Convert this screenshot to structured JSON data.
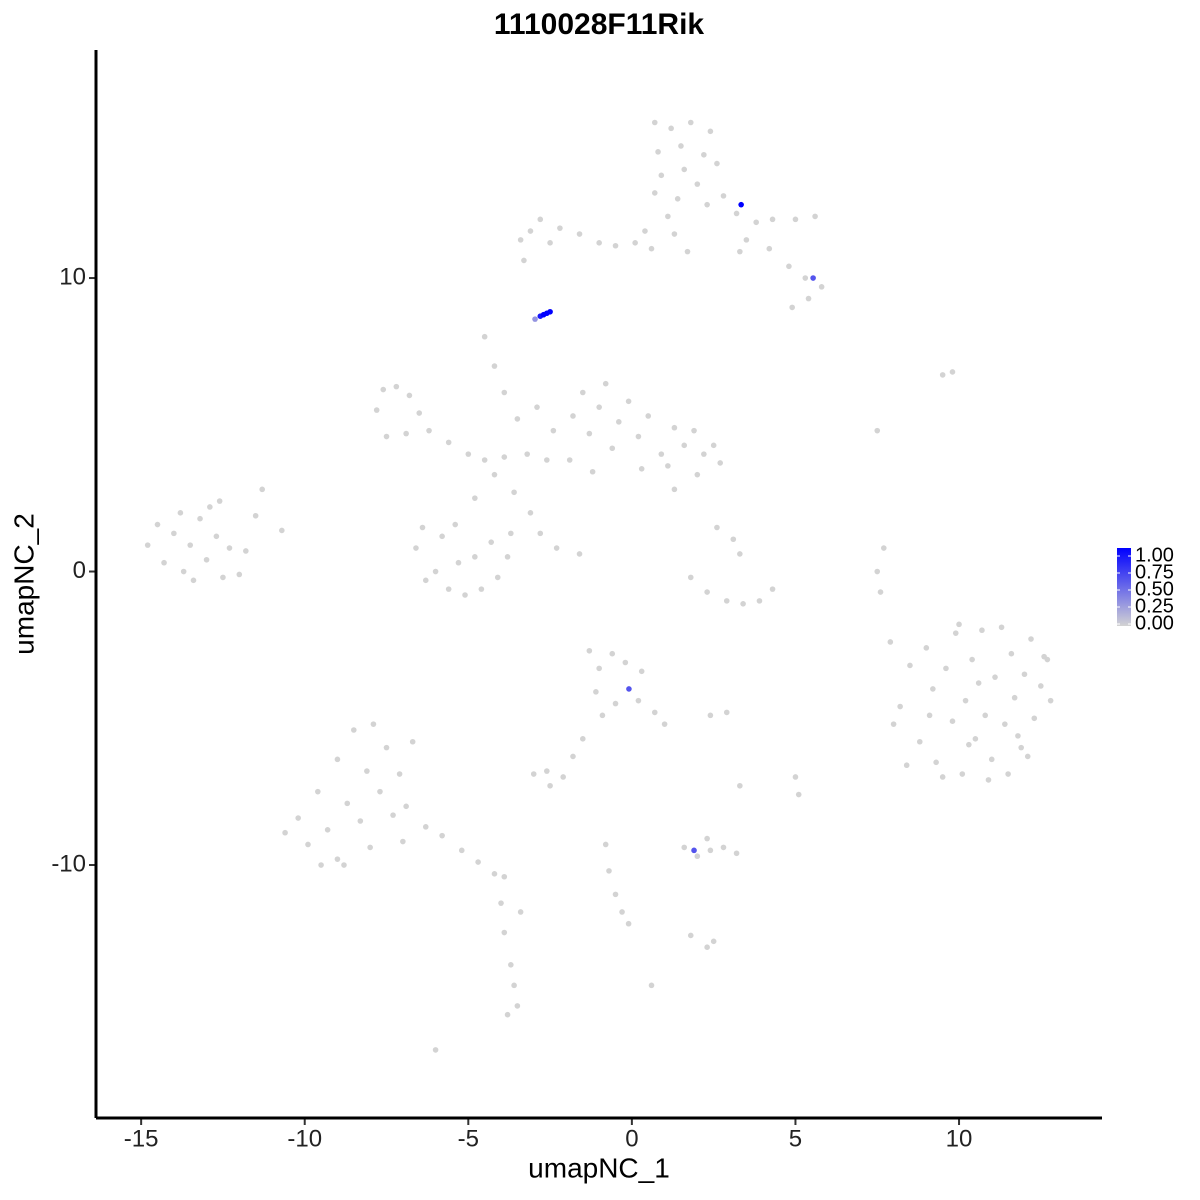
{
  "chart_data": {
    "type": "scatter",
    "title": "1110028F11Rik",
    "x_label": "umapNC_1",
    "y_label": "umapNC_2",
    "xlim": [
      -16.38,
      14.37
    ],
    "ylim": [
      -18.62,
      17.77
    ],
    "xticks": [
      -15,
      -10,
      -5,
      0,
      5,
      10
    ],
    "yticks": [
      -10,
      0,
      10
    ],
    "grid": false,
    "x": [
      8.2,
      8.5,
      8.8,
      9.0,
      9.2,
      9.3,
      9.6,
      9.8,
      9.9,
      10.1,
      10.2,
      10.4,
      10.5,
      10.7,
      10.8,
      11.0,
      11.1,
      11.3,
      11.4,
      11.6,
      11.7,
      11.9,
      12.0,
      12.2,
      12.3,
      12.5,
      12.6,
      12.8,
      9.5,
      10.9,
      8.4,
      11.5,
      12.1,
      10.0,
      8.0,
      12.7,
      9.1,
      10.6,
      11.8,
      10.3,
      0.7,
      1.2,
      1.8,
      2.4,
      0.8,
      1.5,
      2.2,
      2.6,
      0.9,
      1.6,
      2.0,
      0.7,
      1.4,
      2.3,
      1.1,
      2.8,
      3.2,
      3.8,
      4.3,
      5.0,
      5.6,
      3.5,
      4.2,
      4.8,
      5.3,
      5.8,
      5.4,
      4.9,
      3.3,
      0.4,
      0.1,
      -0.5,
      -1.0,
      -1.6,
      -2.2,
      -2.8,
      -3.1,
      -3.4,
      -2.5,
      -3.3,
      0.6,
      1.3,
      1.7,
      -14.8,
      -14.5,
      -14.3,
      -14.0,
      -13.8,
      -13.7,
      -13.5,
      -13.2,
      -13.0,
      -12.9,
      -12.7,
      -12.5,
      -12.3,
      -12.0,
      -11.8,
      -13.4,
      -12.6,
      -11.3,
      -10.7,
      -11.5,
      -1.8,
      -1.5,
      -1.3,
      -1.0,
      -0.8,
      -0.6,
      -0.4,
      -0.1,
      0.2,
      0.5,
      0.9,
      1.3,
      1.6,
      1.9,
      2.2,
      2.5,
      2.7,
      1.1,
      -1.9,
      -1.2,
      0.3,
      2.0,
      -7.8,
      -7.6,
      -7.2,
      -6.8,
      -6.5,
      -6.9,
      -7.5,
      -6.2,
      -5.6,
      -5.0,
      -4.5,
      -3.9,
      -3.2,
      -2.6,
      -4.2,
      -4.8,
      -5.4,
      -3.6,
      -3.1,
      -2.8,
      -2.3,
      -1.6,
      -4.5,
      -4.2,
      -3.9,
      -3.5,
      -2.9,
      -2.4,
      -6.6,
      -6.4,
      -6.0,
      -5.6,
      -5.1,
      -4.6,
      -4.1,
      -3.8,
      -3.7,
      -4.3,
      -5.3,
      -6.3,
      -5.8,
      -4.8,
      1.8,
      2.3,
      2.9,
      3.4,
      3.9,
      4.3,
      3.1,
      3.3,
      2.6,
      1.3,
      7.7,
      7.5,
      7.6,
      7.9,
      7.5,
      9.5,
      9.8,
      -1.3,
      -1.0,
      -0.6,
      -0.2,
      0.3,
      -1.1,
      -0.5,
      0.2,
      0.7,
      1.0,
      -0.9,
      -1.5,
      -1.8,
      2.4,
      2.9,
      -2.6,
      -2.1,
      -3.0,
      -2.5,
      5.0,
      5.1,
      3.3,
      -10.6,
      -10.2,
      -9.9,
      -9.6,
      -9.3,
      -9.0,
      -9.0,
      -8.7,
      -8.5,
      -8.3,
      -8.1,
      -7.9,
      -7.7,
      -7.5,
      -7.3,
      -7.1,
      -6.9,
      -6.7,
      -8.8,
      -9.5,
      -7.0,
      -8.0,
      -6.3,
      -5.8,
      -5.2,
      -4.7,
      -4.2,
      -3.9,
      -4.0,
      -3.9,
      -3.7,
      -3.6,
      -3.5,
      -3.8,
      -6.0,
      -3.4,
      1.6,
      2.0,
      2.4,
      2.8,
      3.2,
      2.3,
      -0.8,
      -0.7,
      -0.5,
      -0.3,
      -0.1,
      1.8,
      2.3,
      2.5,
      0.6,
      3.34,
      5.54,
      -2.96,
      -2.8,
      -2.7,
      -2.6,
      -2.5,
      -0.09,
      1.9
    ],
    "y": [
      -4.6,
      -3.2,
      -5.8,
      -2.6,
      -4.0,
      -6.5,
      -3.3,
      -5.1,
      -2.1,
      -6.9,
      -4.4,
      -3.0,
      -5.7,
      -2.0,
      -4.9,
      -6.4,
      -3.6,
      -1.9,
      -5.2,
      -2.8,
      -4.3,
      -6.0,
      -3.5,
      -2.3,
      -5.0,
      -3.9,
      -2.9,
      -4.4,
      -7.0,
      -7.1,
      -6.6,
      -6.9,
      -6.3,
      -1.8,
      -5.2,
      -3.0,
      -4.9,
      -3.8,
      -5.6,
      -5.9,
      15.3,
      15.1,
      15.3,
      15.0,
      14.3,
      14.5,
      14.2,
      13.9,
      13.5,
      13.7,
      13.2,
      12.9,
      12.7,
      12.5,
      12.1,
      12.8,
      12.2,
      11.9,
      12.0,
      12.0,
      12.1,
      11.3,
      11.0,
      10.4,
      10.0,
      9.7,
      9.3,
      9.0,
      10.9,
      11.6,
      11.2,
      11.1,
      11.2,
      11.5,
      11.7,
      12.0,
      11.6,
      11.3,
      11.2,
      10.6,
      11.0,
      11.5,
      10.9,
      0.9,
      1.6,
      0.3,
      1.3,
      2.0,
      0.0,
      0.9,
      1.8,
      0.4,
      2.2,
      1.2,
      -0.2,
      0.8,
      -0.1,
      0.7,
      -0.3,
      2.4,
      2.8,
      1.4,
      1.9,
      5.3,
      6.1,
      4.7,
      5.6,
      6.4,
      4.2,
      5.1,
      5.8,
      4.6,
      5.3,
      4.0,
      4.9,
      4.3,
      4.8,
      4.0,
      4.3,
      3.7,
      3.6,
      3.8,
      3.4,
      3.5,
      3.3,
      5.5,
      6.2,
      6.3,
      6.0,
      5.4,
      4.7,
      4.6,
      4.8,
      4.4,
      4.0,
      3.8,
      3.9,
      4.0,
      3.8,
      3.3,
      2.5,
      1.6,
      2.7,
      2.0,
      1.3,
      0.8,
      0.6,
      8.0,
      7.0,
      6.1,
      5.2,
      5.6,
      4.8,
      0.8,
      1.5,
      0.0,
      -0.6,
      -0.8,
      -0.6,
      -0.2,
      0.5,
      1.3,
      1.0,
      0.3,
      -0.3,
      1.2,
      0.5,
      -0.2,
      -0.7,
      -1.0,
      -1.1,
      -1.0,
      -0.6,
      1.1,
      0.6,
      1.5,
      2.8,
      0.8,
      0.0,
      -0.7,
      -2.4,
      4.8,
      6.7,
      6.8,
      -2.7,
      -3.3,
      -2.8,
      -3.1,
      -3.4,
      -4.1,
      -4.5,
      -4.4,
      -4.8,
      -5.2,
      -4.9,
      -5.7,
      -6.3,
      -4.9,
      -4.8,
      -6.8,
      -7.0,
      -6.9,
      -7.3,
      -7.0,
      -7.6,
      -7.3,
      -8.9,
      -8.4,
      -9.3,
      -7.5,
      -8.8,
      -6.4,
      -9.8,
      -7.9,
      -5.4,
      -8.5,
      -6.8,
      -5.2,
      -7.5,
      -6.0,
      -8.3,
      -6.9,
      -8.0,
      -5.8,
      -10.0,
      -10.0,
      -9.2,
      -9.4,
      -8.7,
      -9.0,
      -9.5,
      -9.9,
      -10.3,
      -10.4,
      -11.3,
      -12.3,
      -13.4,
      -14.1,
      -14.8,
      -15.1,
      -16.3,
      -11.6,
      -9.4,
      -9.7,
      -9.5,
      -9.4,
      -9.6,
      -9.1,
      -9.3,
      -10.2,
      -11.0,
      -11.6,
      -12.0,
      -12.4,
      -12.8,
      -12.6,
      -14.1,
      12.5,
      10.0,
      8.6,
      8.7,
      8.75,
      8.8,
      8.85,
      -4.0,
      -9.5
    ],
    "expression": [
      0,
      0,
      0,
      0,
      0,
      0,
      0,
      0,
      0,
      0,
      0,
      0,
      0,
      0,
      0,
      0,
      0,
      0,
      0,
      0,
      0,
      0,
      0,
      0,
      0,
      0,
      0,
      0,
      0,
      0,
      0,
      0,
      0,
      0,
      0,
      0,
      0,
      0,
      0,
      0,
      0,
      0,
      0,
      0,
      0,
      0,
      0,
      0,
      0,
      0,
      0,
      0,
      0,
      0,
      0,
      0,
      0,
      0,
      0,
      0,
      0,
      0,
      0,
      0,
      0,
      0,
      0,
      0,
      0,
      0,
      0,
      0,
      0,
      0,
      0,
      0,
      0,
      0,
      0,
      0,
      0,
      0,
      0,
      0,
      0,
      0,
      0,
      0,
      0,
      0,
      0,
      0,
      0,
      0,
      0,
      0,
      0,
      0,
      0,
      0,
      0,
      0,
      0,
      0,
      0,
      0,
      0,
      0,
      0,
      0,
      0,
      0,
      0,
      0,
      0,
      0,
      0,
      0,
      0,
      0,
      0,
      0,
      0,
      0,
      0,
      0,
      0,
      0,
      0,
      0,
      0,
      0,
      0,
      0,
      0,
      0,
      0,
      0,
      0,
      0,
      0,
      0,
      0,
      0,
      0,
      0,
      0,
      0,
      0,
      0,
      0,
      0,
      0,
      0,
      0,
      0,
      0,
      0,
      0,
      0,
      0,
      0,
      0,
      0,
      0,
      0,
      0,
      0,
      0,
      0,
      0,
      0,
      0,
      0,
      0,
      0,
      0,
      0,
      0,
      0,
      0,
      0,
      0,
      0,
      0,
      0,
      0,
      0,
      0,
      0,
      0,
      0,
      0,
      0,
      0,
      0,
      0,
      0,
      0,
      0,
      0,
      0,
      0,
      0,
      0,
      0,
      0,
      0,
      0,
      0,
      0,
      0,
      0,
      0,
      0,
      0,
      0,
      0,
      0,
      0,
      0,
      0,
      0,
      0,
      0,
      0,
      0,
      0,
      0,
      0,
      0,
      0,
      0,
      0,
      0,
      0,
      0,
      0,
      0,
      0,
      0,
      0,
      0,
      0,
      0,
      0,
      0,
      0,
      0,
      0,
      0,
      0,
      0,
      0,
      0,
      0,
      0,
      1.0,
      0.6,
      0.3,
      0.9,
      1.0,
      1.0,
      1.0,
      0.6,
      0.6
    ],
    "colorbar": {
      "low": "#d3d3d3",
      "high": "#0000ff",
      "lim": [
        0,
        1
      ],
      "ticks": [
        {
          "value": 0,
          "label": "0.00"
        },
        {
          "value": 0.25,
          "label": "0.25"
        },
        {
          "value": 0.5,
          "label": "0.50"
        },
        {
          "value": 0.75,
          "label": "0.75"
        },
        {
          "value": 1,
          "label": "1.00"
        }
      ]
    }
  }
}
